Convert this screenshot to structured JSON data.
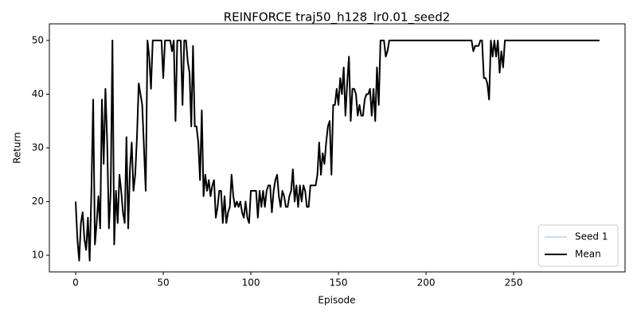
{
  "chart_data": {
    "type": "line",
    "title": "REINFORCE traj50_h128_lr0.01_seed2",
    "xlabel": "Episode",
    "ylabel": "Return",
    "x": [
      0,
      1,
      2,
      3,
      4,
      5,
      6,
      7,
      8,
      9,
      10,
      11,
      12,
      13,
      14,
      15,
      16,
      17,
      18,
      19,
      20,
      21,
      22,
      23,
      24,
      25,
      26,
      27,
      28,
      29,
      30,
      31,
      32,
      33,
      34,
      35,
      36,
      37,
      38,
      39,
      40,
      41,
      42,
      43,
      44,
      45,
      46,
      47,
      48,
      49,
      50,
      51,
      52,
      53,
      54,
      55,
      56,
      57,
      58,
      59,
      60,
      61,
      62,
      63,
      64,
      65,
      66,
      67,
      68,
      69,
      70,
      71,
      72,
      73,
      74,
      75,
      76,
      77,
      78,
      79,
      80,
      81,
      82,
      83,
      84,
      85,
      86,
      87,
      88,
      89,
      90,
      91,
      92,
      93,
      94,
      95,
      96,
      97,
      98,
      99,
      100,
      101,
      102,
      103,
      104,
      105,
      106,
      107,
      108,
      109,
      110,
      111,
      112,
      113,
      114,
      115,
      116,
      117,
      118,
      119,
      120,
      121,
      122,
      123,
      124,
      125,
      126,
      127,
      128,
      129,
      130,
      131,
      132,
      133,
      134,
      135,
      136,
      137,
      138,
      139,
      140,
      141,
      142,
      143,
      144,
      145,
      146,
      147,
      148,
      149,
      150,
      151,
      152,
      153,
      154,
      155,
      156,
      157,
      158,
      159,
      160,
      161,
      162,
      163,
      164,
      165,
      166,
      167,
      168,
      169,
      170,
      171,
      172,
      173,
      174,
      175,
      176,
      177,
      178,
      179,
      180,
      181,
      182,
      183,
      184,
      185,
      186,
      187,
      188,
      189,
      190,
      191,
      192,
      193,
      194,
      195,
      196,
      197,
      198,
      199,
      200,
      201,
      202,
      203,
      204,
      205,
      206,
      207,
      208,
      209,
      210,
      211,
      212,
      213,
      214,
      215,
      216,
      217,
      218,
      219,
      220,
      221,
      222,
      223,
      224,
      225,
      226,
      227,
      228,
      229,
      230,
      231,
      232,
      233,
      234,
      235,
      236,
      237,
      238,
      239,
      240,
      241,
      242,
      243,
      244,
      245,
      246,
      247,
      248,
      249,
      250,
      251,
      252,
      253,
      254,
      255,
      256,
      257,
      258,
      259,
      260,
      261,
      262,
      263,
      264,
      265,
      266,
      267,
      268,
      269,
      270,
      271,
      272,
      273,
      274,
      275,
      276,
      277,
      278,
      279,
      280,
      281,
      282,
      283,
      284,
      285,
      286,
      287,
      288,
      289,
      290,
      291,
      292,
      293,
      294,
      295,
      296,
      297,
      298,
      299
    ],
    "series": [
      {
        "name": "Seed 1",
        "color": "#a6cbe3",
        "width": 1.2,
        "values": [
          20,
          13,
          9,
          16,
          18,
          13,
          11,
          17,
          9,
          22,
          39,
          12,
          16,
          21,
          15,
          39,
          27,
          41,
          31,
          15,
          22,
          50,
          12,
          22,
          16,
          25,
          22,
          18,
          16,
          32,
          15,
          26,
          31,
          22,
          25,
          32,
          42,
          40,
          38,
          30,
          22,
          50,
          47,
          41,
          50,
          50,
          50,
          50,
          50,
          50,
          43,
          50,
          50,
          50,
          50,
          48,
          50,
          35,
          50,
          50,
          50,
          38,
          50,
          50,
          46,
          44,
          34,
          49,
          34,
          34,
          31,
          24,
          37,
          21,
          25,
          22,
          24,
          21,
          23,
          24,
          17,
          19,
          22,
          22,
          16,
          21,
          16,
          18,
          19,
          25,
          21,
          19,
          20,
          19,
          20,
          18,
          17,
          20,
          17,
          16,
          22,
          22,
          22,
          22,
          17,
          22,
          19,
          22,
          19,
          22,
          23,
          23,
          18,
          22,
          24,
          25,
          21,
          19,
          22,
          21,
          19,
          19,
          21,
          22,
          26,
          20,
          23,
          19,
          23,
          20,
          23,
          22,
          19,
          19,
          23,
          23,
          23,
          23,
          25,
          31,
          25,
          29,
          27,
          31,
          34,
          35,
          25,
          38,
          38,
          41,
          38,
          43,
          40,
          45,
          36,
          42,
          47,
          35,
          41,
          41,
          40,
          36,
          38,
          36,
          36,
          39,
          40,
          40,
          41,
          36,
          41,
          35,
          45,
          38,
          50,
          50,
          50,
          47,
          48,
          50,
          50,
          50,
          50,
          50,
          50,
          50,
          50,
          50,
          50,
          50,
          50,
          50,
          50,
          50,
          50,
          50,
          50,
          50,
          50,
          50,
          50,
          50,
          50,
          50,
          50,
          50,
          50,
          50,
          50,
          50,
          50,
          50,
          50,
          50,
          50,
          50,
          50,
          50,
          50,
          50,
          50,
          50,
          50,
          50,
          50,
          50,
          50,
          48,
          49,
          49,
          49,
          50,
          50,
          43,
          43,
          42,
          39,
          50,
          47,
          50,
          47,
          50,
          44,
          48,
          45,
          50,
          50,
          50,
          50,
          50,
          50,
          50,
          50,
          50,
          50,
          50,
          50,
          50,
          50,
          50,
          50,
          50,
          50,
          50,
          50,
          50,
          50,
          50,
          50,
          50,
          50,
          50,
          50,
          50,
          50,
          50,
          50,
          50,
          50,
          50,
          50,
          50,
          50,
          50,
          50,
          50,
          50,
          50,
          50,
          50,
          50,
          50,
          50,
          50,
          50,
          50,
          50,
          50,
          50,
          50
        ]
      },
      {
        "name": "Mean",
        "color": "#000000",
        "width": 2,
        "values": [
          20,
          13,
          9,
          16,
          18,
          13,
          11,
          17,
          9,
          22,
          39,
          12,
          16,
          21,
          15,
          39,
          27,
          41,
          31,
          15,
          22,
          50,
          12,
          22,
          16,
          25,
          22,
          18,
          16,
          32,
          15,
          26,
          31,
          22,
          25,
          32,
          42,
          40,
          38,
          30,
          22,
          50,
          47,
          41,
          50,
          50,
          50,
          50,
          50,
          50,
          43,
          50,
          50,
          50,
          50,
          48,
          50,
          35,
          50,
          50,
          50,
          38,
          50,
          50,
          46,
          44,
          34,
          49,
          34,
          34,
          31,
          24,
          37,
          21,
          25,
          22,
          24,
          21,
          23,
          24,
          17,
          19,
          22,
          22,
          16,
          21,
          16,
          18,
          19,
          25,
          21,
          19,
          20,
          19,
          20,
          18,
          17,
          20,
          17,
          16,
          22,
          22,
          22,
          22,
          17,
          22,
          19,
          22,
          19,
          22,
          23,
          23,
          18,
          22,
          24,
          25,
          21,
          19,
          22,
          21,
          19,
          19,
          21,
          22,
          26,
          20,
          23,
          19,
          23,
          20,
          23,
          22,
          19,
          19,
          23,
          23,
          23,
          23,
          25,
          31,
          25,
          29,
          27,
          31,
          34,
          35,
          25,
          38,
          38,
          41,
          38,
          43,
          40,
          45,
          36,
          42,
          47,
          35,
          41,
          41,
          40,
          36,
          38,
          36,
          36,
          39,
          40,
          40,
          41,
          36,
          41,
          35,
          45,
          38,
          50,
          50,
          50,
          47,
          48,
          50,
          50,
          50,
          50,
          50,
          50,
          50,
          50,
          50,
          50,
          50,
          50,
          50,
          50,
          50,
          50,
          50,
          50,
          50,
          50,
          50,
          50,
          50,
          50,
          50,
          50,
          50,
          50,
          50,
          50,
          50,
          50,
          50,
          50,
          50,
          50,
          50,
          50,
          50,
          50,
          50,
          50,
          50,
          50,
          50,
          50,
          50,
          50,
          48,
          49,
          49,
          49,
          50,
          50,
          43,
          43,
          42,
          39,
          50,
          47,
          50,
          47,
          50,
          44,
          48,
          45,
          50,
          50,
          50,
          50,
          50,
          50,
          50,
          50,
          50,
          50,
          50,
          50,
          50,
          50,
          50,
          50,
          50,
          50,
          50,
          50,
          50,
          50,
          50,
          50,
          50,
          50,
          50,
          50,
          50,
          50,
          50,
          50,
          50,
          50,
          50,
          50,
          50,
          50,
          50,
          50,
          50,
          50,
          50,
          50,
          50,
          50,
          50,
          50,
          50,
          50,
          50,
          50,
          50,
          50,
          50
        ]
      }
    ],
    "xlim": [
      -15,
      313.6
    ],
    "ylim": [
      6.9,
      53.1
    ],
    "xticks": [
      0,
      50,
      100,
      150,
      200,
      250
    ],
    "yticks": [
      10,
      20,
      30,
      40,
      50
    ],
    "grid": false,
    "legend": "lower right"
  }
}
